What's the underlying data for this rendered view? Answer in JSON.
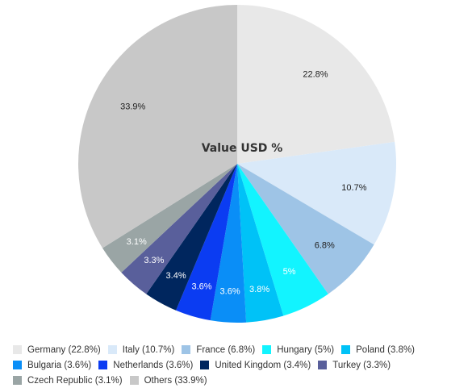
{
  "chart_data": {
    "type": "pie",
    "title": "Value USD %",
    "unit": "%",
    "legend_position": "bottom",
    "slices": [
      {
        "label": "Germany (22.8%)",
        "value_label": "22.8%",
        "value": 22.8,
        "color": "#e8e8e8",
        "label_color": "#222222"
      },
      {
        "label": "Italy (10.7%)",
        "value_label": "10.7%",
        "value": 10.7,
        "color": "#d9e9f9",
        "label_color": "#222222"
      },
      {
        "label": "France (6.8%)",
        "value_label": "6.8%",
        "value": 6.8,
        "color": "#9ec4e6",
        "label_color": "#222222"
      },
      {
        "label": "Hungary (5%)",
        "value_label": "5%",
        "value": 5.0,
        "color": "#12f4ff",
        "label_color": "#ffffff"
      },
      {
        "label": "Poland (3.8%)",
        "value_label": "3.8%",
        "value": 3.8,
        "color": "#00c2f7",
        "label_color": "#ffffff"
      },
      {
        "label": "Bulgaria (3.6%)",
        "value_label": "3.6%",
        "value": 3.6,
        "color": "#0a8ef7",
        "label_color": "#ffffff"
      },
      {
        "label": "Netherlands (3.6%)",
        "value_label": "3.6%",
        "value": 3.6,
        "color": "#0b3cf2",
        "label_color": "#ffffff"
      },
      {
        "label": "United Kingdom (3.4%)",
        "value_label": "3.4%",
        "value": 3.4,
        "color": "#00265e",
        "label_color": "#ffffff"
      },
      {
        "label": "Turkey (3.3%)",
        "value_label": "3.3%",
        "value": 3.3,
        "color": "#595f9b",
        "label_color": "#ffffff"
      },
      {
        "label": "Czech Republic (3.1%)",
        "value_label": "3.1%",
        "value": 3.1,
        "color": "#9aa5a5",
        "label_color": "#ffffff"
      },
      {
        "label": "Others (33.9%)",
        "value_label": "33.9%",
        "value": 33.9,
        "color": "#c8c8c8",
        "label_color": "#222222"
      }
    ]
  }
}
